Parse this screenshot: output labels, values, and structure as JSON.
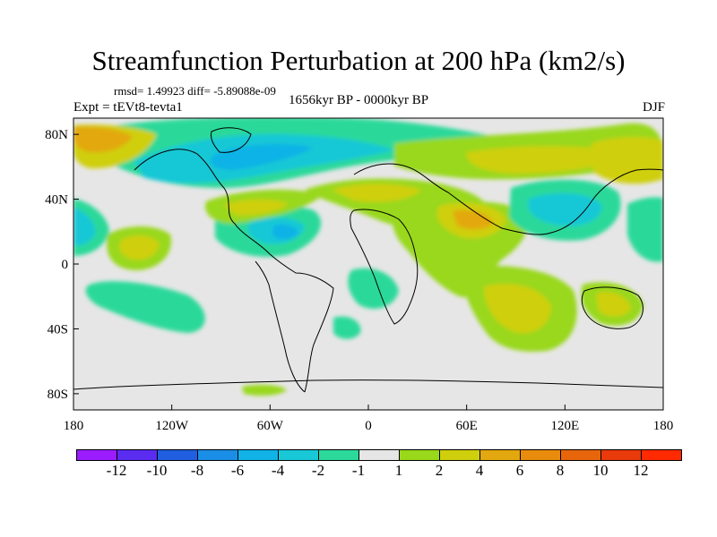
{
  "title": "Streamfunction Perturbation at 200 hPa (km2/s)",
  "stats": "rmsd= 1.49923  diff= -5.89088e-09",
  "experiment": "Expt = tEVt8-tevta1",
  "period": "1656kyr BP - 0000kyr BP",
  "season": "DJF",
  "colors": {
    "ocean_land_bg": "#e6e6e6",
    "neg_light": "#2bd99a",
    "neg_mid": "#19c8d6",
    "neg_deep": "#11b2e6",
    "pos_light": "#99d81b",
    "pos_mid": "#cfcf0e",
    "pos_deep": "#e3a80f"
  },
  "chart_data": {
    "type": "contour-map",
    "projection": "cylindrical equidistant",
    "variable": "Streamfunction Perturbation at 200 hPa",
    "units": "km2/s",
    "x_ticks": [
      "180",
      "120W",
      "60W",
      "0",
      "60E",
      "120E",
      "180"
    ],
    "y_ticks": [
      "80N",
      "40N",
      "0",
      "40S",
      "80S"
    ],
    "lon_range": [
      -180,
      180
    ],
    "lat_range": [
      -90,
      90
    ],
    "colorbar": {
      "levels": [
        "-12",
        "-10",
        "-8",
        "-6",
        "-4",
        "-2",
        "-1",
        "1",
        "2",
        "4",
        "6",
        "8",
        "10",
        "12"
      ],
      "colors": [
        "#9b1dff",
        "#5a2cf0",
        "#1f5fe0",
        "#1a8ee6",
        "#11b2e6",
        "#19c8d6",
        "#2bd99a",
        "#e6e6e6",
        "#99d81b",
        "#cfcf0e",
        "#e3a80f",
        "#e98b0d",
        "#e8660b",
        "#e83a0b",
        "#ff2a00"
      ]
    }
  }
}
